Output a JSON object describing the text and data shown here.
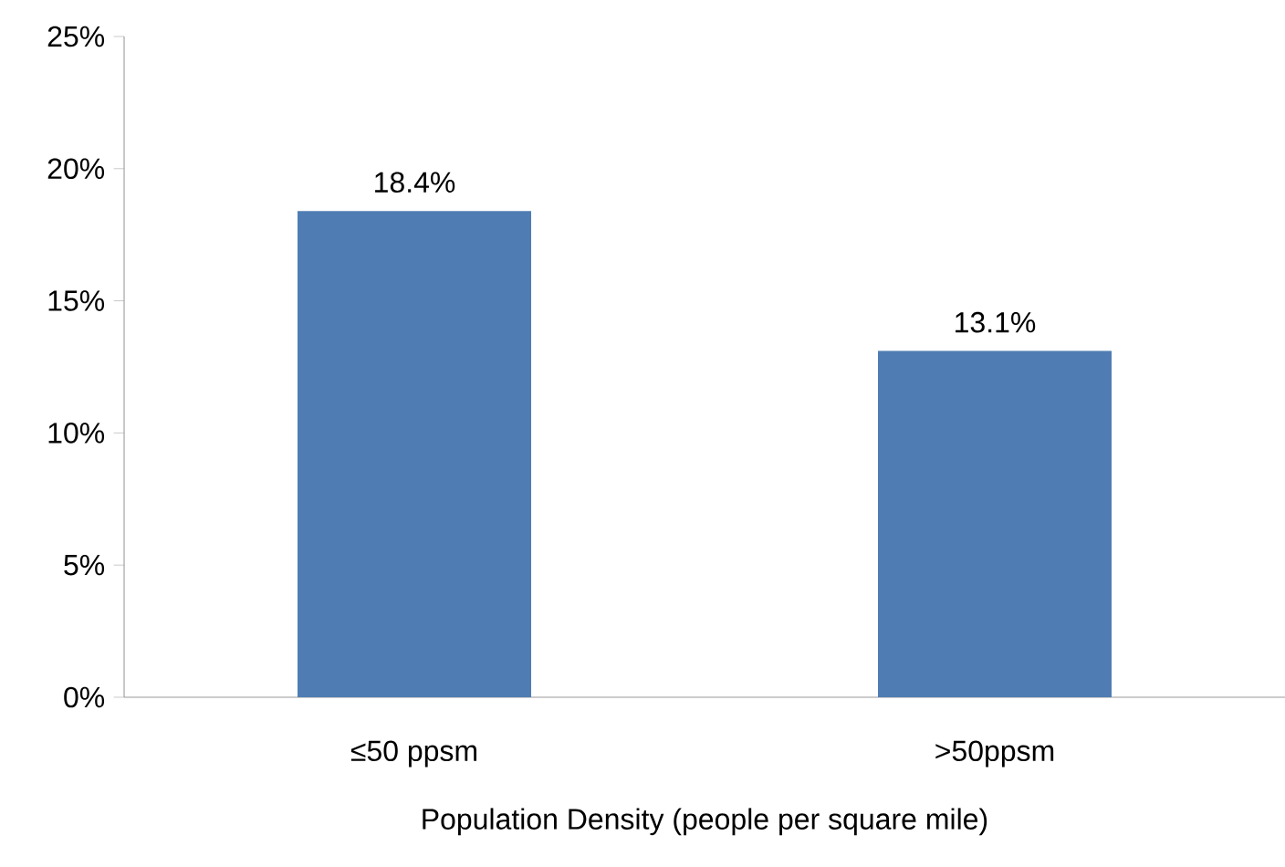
{
  "chart_data": {
    "type": "bar",
    "xlabel": "Population Density (people per square mile)",
    "categories": [
      "≤50 ppsm",
      ">50ppsm"
    ],
    "values": [
      18.4,
      13.1
    ],
    "value_labels": [
      "18.4%",
      "13.1%"
    ],
    "color": "#4f7db3",
    "ylim": [
      0,
      25
    ],
    "yticks": [
      {
        "value": 0,
        "label": "0%"
      },
      {
        "value": 5,
        "label": "5%"
      },
      {
        "value": 10,
        "label": "10%"
      },
      {
        "value": 15,
        "label": "15%"
      },
      {
        "value": 20,
        "label": "20%"
      },
      {
        "value": 25,
        "label": "25%"
      }
    ],
    "grid": false
  }
}
